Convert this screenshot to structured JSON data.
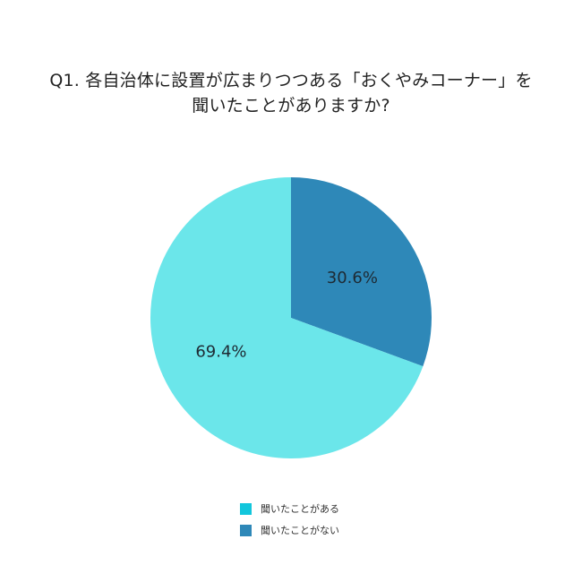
{
  "chart_data": {
    "type": "pie",
    "title_lines": [
      "Q1. 各自治体に設置が広まりつつある「おくやみコーナー」を",
      "聞いたことがありますか?"
    ],
    "slices": [
      {
        "label": "聞いたことがある",
        "value": 69.4,
        "display": "69.4%",
        "color": "#6be6ea"
      },
      {
        "label": "聞いたことがない",
        "value": 30.6,
        "display": "30.6%",
        "color": "#2e88b8"
      }
    ],
    "start": "12 o'clock",
    "direction": "clockwise, 聞いたことがない first",
    "legend_position": "bottom"
  },
  "legend": {
    "items": [
      {
        "label": "聞いたことがある",
        "color": "#12c6dc"
      },
      {
        "label": "聞いたことがない",
        "color": "#2e88b8"
      }
    ]
  }
}
